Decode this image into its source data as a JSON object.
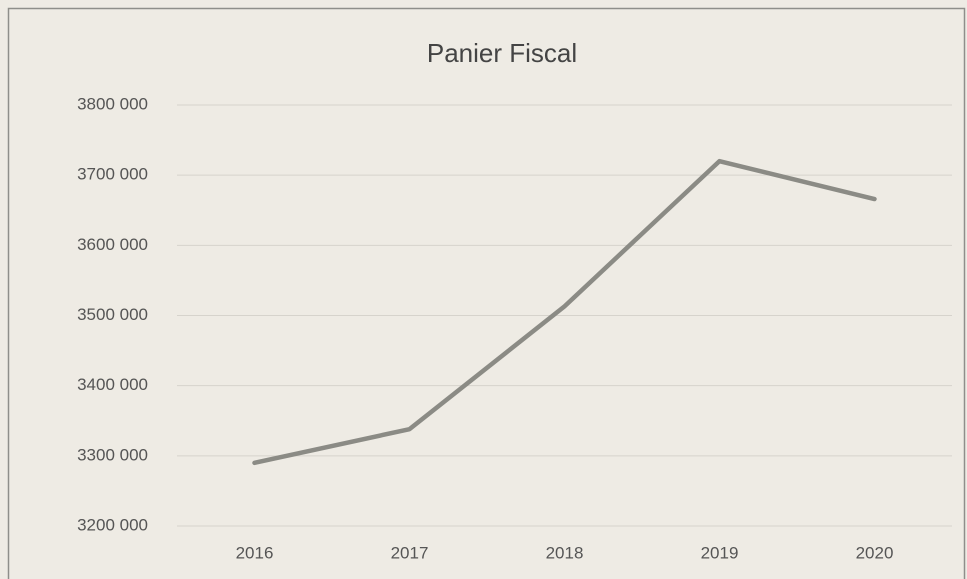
{
  "chart_data": {
    "type": "line",
    "title": "Panier Fiscal",
    "categories": [
      "2016",
      "2017",
      "2018",
      "2019",
      "2020"
    ],
    "series": [
      {
        "name": "Panier Fiscal",
        "color": "#8b8b85",
        "values": [
          3290000,
          3338000,
          3513000,
          3720000,
          3666000
        ]
      }
    ],
    "ylim": [
      3200000,
      3800000
    ],
    "yticks": [
      {
        "value": 3200000,
        "label": "3200 000"
      },
      {
        "value": 3300000,
        "label": "3300 000"
      },
      {
        "value": 3400000,
        "label": "3400 000"
      },
      {
        "value": 3500000,
        "label": "3500 000"
      },
      {
        "value": 3600000,
        "label": "3600 000"
      },
      {
        "value": 3700000,
        "label": "3700 000"
      },
      {
        "value": 3800000,
        "label": "3800 000"
      }
    ],
    "grid": true
  }
}
